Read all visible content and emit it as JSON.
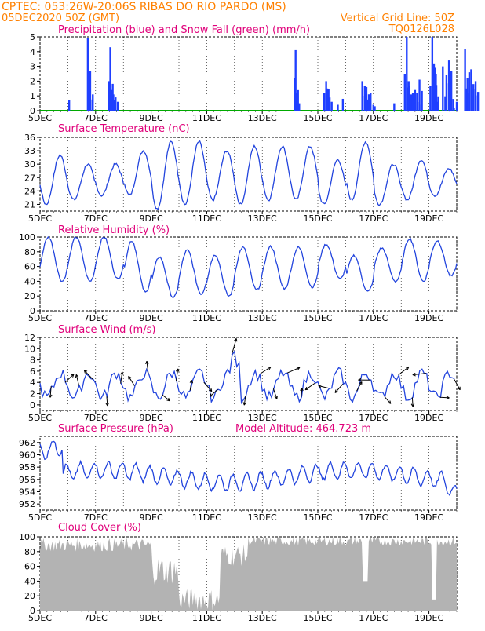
{
  "header": {
    "line1": "CPTEC:   053:26W-20:06S   RIBAS DO RIO PARDO (MS)",
    "line2": "05DEC2020 50Z (GMT)",
    "grid_note": "Vertical Grid Line: 50Z",
    "code": "TQ0126L028"
  },
  "colors": {
    "header": "#ff8000",
    "title": "#e0007a",
    "line": "#2244dd",
    "precip": "#1f3fff",
    "snow": "#00aa00",
    "cloud": "#b3b3b3"
  },
  "chart_data": [
    {
      "type": "bar",
      "title": "Precipitation (blue) and Snow Fall (green) (mm/h)",
      "x_labels": [
        "5DEC",
        "7DEC",
        "9DEC",
        "11DEC",
        "13DEC",
        "15DEC",
        "17DEC",
        "19DEC"
      ],
      "ylim": [
        0,
        5
      ],
      "yticks": [
        0,
        1,
        2,
        3,
        4,
        5
      ],
      "precip_events": [
        [
          1.05,
          0.7
        ],
        [
          1.72,
          4.9
        ],
        [
          1.8,
          1.3
        ],
        [
          1.9,
          1.1
        ],
        [
          2.48,
          2.0
        ],
        [
          2.53,
          4.3
        ],
        [
          2.58,
          1.4
        ],
        [
          2.64,
          1.1
        ],
        [
          2.72,
          0.9
        ],
        [
          2.8,
          0.6
        ],
        [
          9.17,
          2.2
        ],
        [
          9.2,
          4.1
        ],
        [
          9.27,
          1.1
        ],
        [
          9.33,
          0.5
        ],
        [
          10.23,
          1.2
        ],
        [
          10.3,
          2.0
        ],
        [
          10.34,
          1.5
        ],
        [
          10.5,
          0.6
        ],
        [
          10.72,
          0.4
        ],
        [
          10.9,
          0.8
        ],
        [
          11.6,
          2.0
        ],
        [
          11.69,
          1.7
        ],
        [
          11.75,
          1.6
        ],
        [
          11.9,
          1.2
        ],
        [
          12.0,
          0.4
        ],
        [
          12.05,
          0.3
        ],
        [
          12.75,
          0.5
        ],
        [
          13.13,
          2.5
        ],
        [
          13.2,
          5.0
        ],
        [
          13.27,
          2.0
        ],
        [
          13.42,
          1.2
        ],
        [
          13.5,
          1.4
        ],
        [
          13.57,
          1.2
        ],
        [
          13.66,
          2.1
        ],
        [
          13.73,
          0.4
        ],
        [
          14.05,
          1.7
        ],
        [
          14.12,
          5.0
        ],
        [
          14.18,
          3.2
        ],
        [
          14.25,
          2.5
        ],
        [
          14.32,
          0.6
        ],
        [
          14.5,
          3.0
        ],
        [
          14.63,
          2.4
        ],
        [
          14.72,
          3.4
        ],
        [
          14.79,
          2.2
        ],
        [
          14.9,
          0.2
        ],
        [
          15.0,
          0.6
        ],
        [
          15.3,
          4.2
        ],
        [
          15.36,
          1.5
        ],
        [
          15.45,
          2.6
        ],
        [
          15.52,
          2.8
        ],
        [
          15.6,
          1.8
        ],
        [
          15.68,
          2.0
        ]
      ],
      "snow": "0 throughout"
    },
    {
      "type": "line",
      "title": "Surface Temperature (nC)",
      "ylim": [
        19.5,
        36
      ],
      "yticks": [
        21,
        24,
        27,
        30,
        33,
        36
      ],
      "daily_min": [
        21,
        22,
        23,
        23,
        20,
        21,
        22,
        21,
        22,
        22,
        21,
        22,
        21,
        22,
        23
      ],
      "daily_max": [
        32,
        30,
        30,
        33,
        35,
        35,
        33,
        34,
        34,
        34,
        31,
        35,
        30,
        31,
        29
      ]
    },
    {
      "type": "line",
      "title": "Relative Humidity (%)",
      "ylim": [
        0,
        100
      ],
      "yticks": [
        0,
        20,
        40,
        60,
        80,
        100
      ],
      "daily_max": [
        100,
        100,
        100,
        95,
        73,
        82,
        76,
        86,
        87,
        86,
        90,
        75,
        85,
        98,
        95
      ],
      "daily_min": [
        40,
        40,
        43,
        25,
        18,
        23,
        20,
        28,
        30,
        32,
        43,
        26,
        40,
        40,
        47
      ]
    },
    {
      "type": "line",
      "title": "Surface Wind (m/s)",
      "ylim": [
        -1,
        12
      ],
      "yticks": [
        0,
        2,
        4,
        6,
        8,
        10,
        12
      ],
      "note": "wind speed line with direction arrows"
    },
    {
      "type": "line",
      "title": "Surface Pressure (hPa)",
      "annotation": "Model Altitude: 464.723 m",
      "ylim": [
        951,
        963
      ],
      "yticks": [
        952,
        954,
        956,
        958,
        960,
        962
      ],
      "start": 960.5,
      "peak": 961.5
    },
    {
      "type": "area",
      "title": "Cloud Cover (%)",
      "ylim": [
        0,
        100
      ],
      "yticks": [
        0,
        20,
        40,
        60,
        80,
        100
      ]
    }
  ]
}
